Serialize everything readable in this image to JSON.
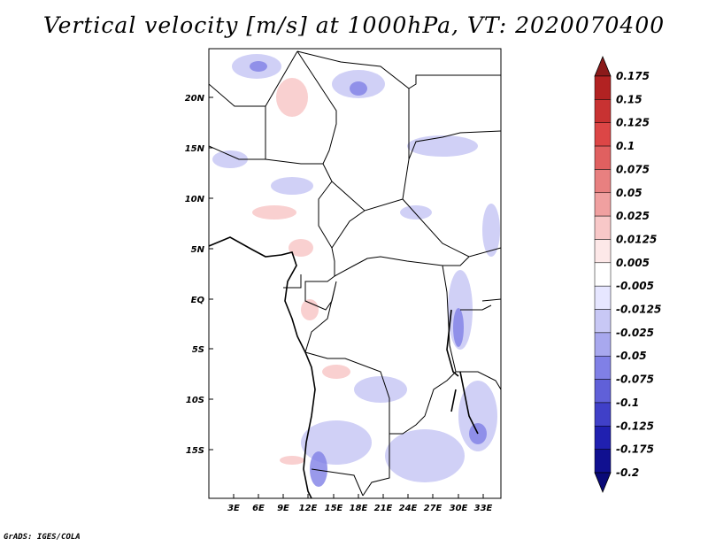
{
  "title": "Vertical velocity [m/s] at 1000hPa, VT: 2020070400",
  "credit": "GrADS: IGES/COLA",
  "map": {
    "lat_ticks": [
      "20N",
      "15N",
      "10N",
      "5N",
      "EQ",
      "5S",
      "10S",
      "15S"
    ],
    "lon_ticks": [
      "3E",
      "6E",
      "9E",
      "12E",
      "15E",
      "18E",
      "21E",
      "24E",
      "27E",
      "30E",
      "33E"
    ]
  },
  "colorbar": {
    "labels": [
      "0.175",
      "0.15",
      "0.125",
      "0.1",
      "0.075",
      "0.05",
      "0.025",
      "0.0125",
      "0.005",
      "-0.005",
      "-0.0125",
      "-0.025",
      "-0.05",
      "-0.075",
      "-0.1",
      "-0.125",
      "-0.175",
      "-0.2"
    ],
    "colors": [
      "#8b1a1a",
      "#b22222",
      "#c83232",
      "#dc4646",
      "#e06060",
      "#e88080",
      "#f0a0a0",
      "#f8c8c8",
      "#fde8e8",
      "#ffffff",
      "#e6e6ff",
      "#c8c8f5",
      "#a8a8ee",
      "#8080e6",
      "#6060d8",
      "#4040c8",
      "#2020b0",
      "#101090",
      "#0a0a78"
    ]
  }
}
